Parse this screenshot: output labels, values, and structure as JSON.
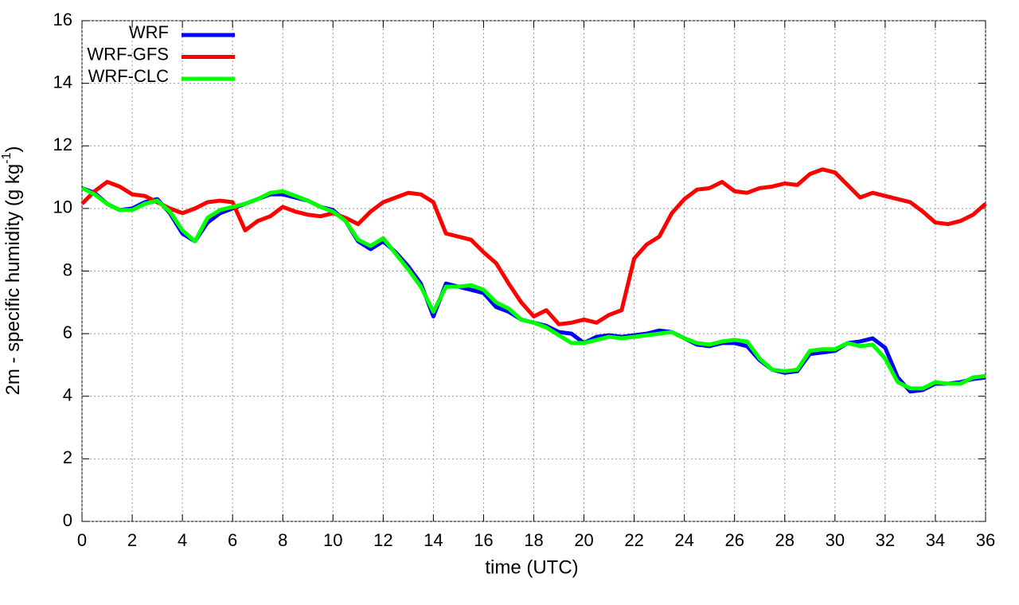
{
  "chart_data": {
    "type": "line",
    "xlabel": "time (UTC)",
    "ylabel": [
      "2m - specific humidity (g kg",
      "-1",
      ")"
    ],
    "x": [
      0,
      0.5,
      1,
      1.5,
      2,
      2.5,
      3,
      3.5,
      4,
      4.5,
      5,
      5.5,
      6,
      6.5,
      7,
      7.5,
      8,
      8.5,
      9,
      9.5,
      10,
      10.5,
      11,
      11.5,
      12,
      12.5,
      13,
      13.5,
      14,
      14.5,
      15,
      15.5,
      16,
      16.5,
      17,
      17.5,
      18,
      18.5,
      19,
      19.5,
      20,
      20.5,
      21,
      21.5,
      22,
      22.5,
      23,
      23.5,
      24,
      24.5,
      25,
      25.5,
      26,
      26.5,
      27,
      27.5,
      28,
      28.5,
      29,
      29.5,
      30,
      30.5,
      31,
      31.5,
      32,
      32.5,
      33,
      33.5,
      34,
      34.5,
      35,
      35.5,
      36
    ],
    "series": [
      {
        "name": "WRF",
        "color": "#0000ff",
        "values": [
          10.65,
          10.5,
          10.15,
          9.95,
          10.0,
          10.2,
          10.3,
          9.85,
          9.2,
          8.95,
          9.55,
          9.85,
          10.0,
          10.15,
          10.3,
          10.45,
          10.45,
          10.35,
          10.25,
          10.05,
          9.95,
          9.6,
          8.95,
          8.7,
          8.95,
          8.6,
          8.15,
          7.6,
          6.55,
          7.6,
          7.5,
          7.4,
          7.3,
          6.85,
          6.7,
          6.45,
          6.35,
          6.25,
          6.05,
          6.0,
          5.7,
          5.9,
          5.95,
          5.9,
          5.95,
          6.0,
          6.1,
          6.05,
          5.85,
          5.65,
          5.6,
          5.7,
          5.7,
          5.6,
          5.15,
          4.85,
          4.75,
          4.8,
          5.35,
          5.4,
          5.45,
          5.7,
          5.75,
          5.85,
          5.55,
          4.6,
          4.15,
          4.2,
          4.4,
          4.4,
          4.45,
          4.55,
          4.6
        ]
      },
      {
        "name": "WRF-GFS",
        "color": "#ff0000",
        "values": [
          10.15,
          10.55,
          10.85,
          10.7,
          10.45,
          10.4,
          10.2,
          10.0,
          9.85,
          10.0,
          10.2,
          10.25,
          10.2,
          9.3,
          9.6,
          9.75,
          10.05,
          9.9,
          9.8,
          9.75,
          9.85,
          9.7,
          9.5,
          9.9,
          10.2,
          10.35,
          10.5,
          10.45,
          10.2,
          9.2,
          9.1,
          9.0,
          8.6,
          8.25,
          7.6,
          7.0,
          6.55,
          6.75,
          6.3,
          6.35,
          6.45,
          6.35,
          6.6,
          6.75,
          8.4,
          8.85,
          9.1,
          9.85,
          10.3,
          10.6,
          10.65,
          10.85,
          10.55,
          10.5,
          10.65,
          10.7,
          10.8,
          10.75,
          11.1,
          11.25,
          11.15,
          10.75,
          10.35,
          10.5,
          10.4,
          10.3,
          10.2,
          9.9,
          9.55,
          9.5,
          9.6,
          9.8,
          10.15
        ]
      },
      {
        "name": "WRF-CLC",
        "color": "#00ff00",
        "values": [
          10.65,
          10.45,
          10.15,
          9.95,
          9.95,
          10.15,
          10.25,
          9.9,
          9.3,
          8.95,
          9.7,
          9.95,
          10.05,
          10.15,
          10.3,
          10.5,
          10.55,
          10.4,
          10.25,
          10.05,
          9.9,
          9.6,
          9.0,
          8.8,
          9.05,
          8.55,
          8.05,
          7.5,
          6.7,
          7.5,
          7.5,
          7.55,
          7.4,
          7.0,
          6.8,
          6.45,
          6.35,
          6.2,
          5.95,
          5.7,
          5.7,
          5.8,
          5.9,
          5.85,
          5.9,
          5.95,
          6.0,
          6.05,
          5.85,
          5.7,
          5.65,
          5.75,
          5.8,
          5.75,
          5.2,
          4.85,
          4.8,
          4.85,
          5.45,
          5.5,
          5.5,
          5.7,
          5.6,
          5.65,
          5.2,
          4.45,
          4.25,
          4.25,
          4.45,
          4.4,
          4.4,
          4.6,
          4.65
        ]
      }
    ],
    "xlim": [
      0,
      36
    ],
    "xticks": [
      0,
      2,
      4,
      6,
      8,
      10,
      12,
      14,
      16,
      18,
      20,
      22,
      24,
      26,
      28,
      30,
      32,
      34,
      36
    ],
    "ylim": [
      0,
      16
    ],
    "yticks": [
      0,
      2,
      4,
      6,
      8,
      10,
      12,
      14,
      16
    ],
    "grid": true,
    "legend": "top-left"
  }
}
